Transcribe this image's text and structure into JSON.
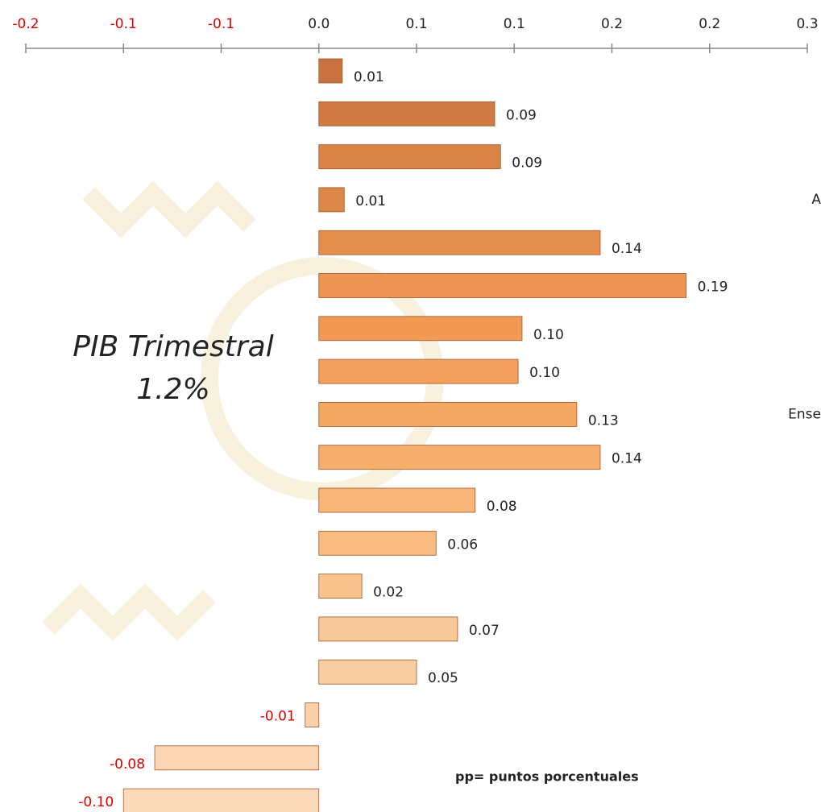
{
  "chart_data": {
    "type": "hbar",
    "annotations": [
      "PIB Trimestral",
      "1.2%",
      "pp= puntos porcentuales"
    ],
    "categories": [
      null,
      null,
      null,
      "A",
      null,
      null,
      null,
      null,
      "Ense",
      null,
      null,
      null,
      null,
      null,
      null,
      null,
      null,
      null
    ],
    "values": [
      0.012,
      0.09,
      0.093,
      0.013,
      0.144,
      0.188,
      0.104,
      0.102,
      0.132,
      0.144,
      0.08,
      0.06,
      0.022,
      0.071,
      0.05,
      -0.007,
      -0.084,
      -0.1
    ],
    "value_labels": [
      "0.01",
      "0.09",
      "0.09",
      "0.01",
      "0.14",
      "0.19",
      "0.10",
      "0.10",
      "0.13",
      "0.14",
      "0.08",
      "0.06",
      "0.02",
      "0.07",
      "0.05",
      "-0.01",
      "-0.08",
      "-0.10"
    ],
    "colors": [
      "#c8733f",
      "#cf7a42",
      "#d88447",
      "#dd8748",
      "#e48e4d",
      "#ec9552",
      "#f09a56",
      "#f4a05c",
      "#f5a864",
      "#f6ae6d",
      "#f7b678",
      "#f8bc82",
      "#f8c28d",
      "#f9c898",
      "#f9cda2",
      "#fad2aa",
      "#fad6b2",
      "#fbdabb"
    ],
    "xlim": [
      -0.15,
      0.25
    ],
    "xticks": [
      {
        "value": -0.15,
        "label": "-0.2"
      },
      {
        "value": -0.1,
        "label": "-0.1"
      },
      {
        "value": -0.05,
        "label": "-0.1"
      },
      {
        "value": 0,
        "label": "0.0"
      },
      {
        "value": 0.05,
        "label": "0.1"
      },
      0.1,
      {
        "value": 0.15,
        "label": "0.2"
      },
      0.2,
      {
        "value": 0.25,
        "label": "0.3"
      }
    ],
    "negative_color": "#e00000"
  }
}
